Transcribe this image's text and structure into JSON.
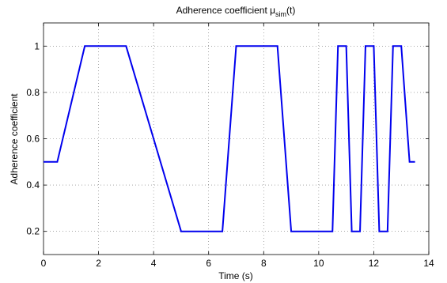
{
  "chart_data": {
    "type": "line",
    "title": {
      "main": "Adherence coefficient μ",
      "sub": "sim",
      "suffix": "(t)"
    },
    "xlabel": "Time (s)",
    "ylabel": "Adherence coefficient",
    "xlim": [
      0,
      14
    ],
    "ylim": [
      0.1,
      1.1
    ],
    "xticks": [
      0,
      2,
      4,
      6,
      8,
      10,
      12,
      14
    ],
    "xtick_labels": [
      "0",
      "2",
      "4",
      "6",
      "8",
      "10",
      "12",
      "14"
    ],
    "yticks": [
      0.2,
      0.4,
      0.6,
      0.8,
      1.0
    ],
    "ytick_labels": [
      "0.2",
      "0.4",
      "0.6",
      "0.8",
      "1"
    ],
    "grid": true,
    "series": [
      {
        "color": "#0000ee",
        "x": [
          0,
          0.5,
          1.5,
          3.0,
          5.0,
          6.5,
          7.0,
          8.5,
          9.0,
          10.5,
          10.7,
          11.0,
          11.2,
          11.5,
          11.7,
          12.0,
          12.2,
          12.5,
          12.7,
          13.0,
          13.3,
          13.5
        ],
        "y": [
          0.5,
          0.5,
          1.0,
          1.0,
          0.2,
          0.2,
          1.0,
          1.0,
          0.2,
          0.2,
          1.0,
          1.0,
          0.2,
          0.2,
          1.0,
          1.0,
          0.2,
          0.2,
          1.0,
          1.0,
          0.5,
          0.5
        ]
      }
    ]
  }
}
